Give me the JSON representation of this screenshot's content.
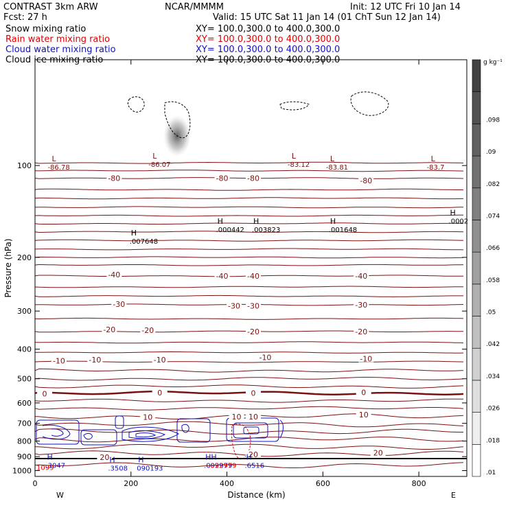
{
  "header": {
    "model": "CONTRAST  3km ARW",
    "center": "NCAR/MMMM",
    "init": "Init: 12 UTC Fri 10 Jan 14",
    "fcst": "Fcst:    27 h",
    "valid": "Valid: 15 UTC Sat 11 Jan 14 (01 ChT Sun 12 Jan 14)"
  },
  "fields": [
    {
      "name": "Snow mixing ratio",
      "xy": "XY= 100.0,300.0 to 400.0,300.0",
      "color": "#000000"
    },
    {
      "name": "Rain water mixing ratio",
      "xy": "XY= 100.0,300.0 to 400.0,300.0",
      "color": "#e00000"
    },
    {
      "name": "Cloud water mixing ratio",
      "xy": "XY= 100.0,300.0 to 400.0,300.0",
      "color": "#1010c0"
    },
    {
      "name": "Cloud ice mixing ratio",
      "xy": "XY= 100.0,300.0 to 400.0,300.0",
      "color": "#000000"
    }
  ],
  "colorbar": {
    "unit": "g kg⁻¹",
    "ticks": [
      ".01",
      ".018",
      ".026",
      ".034",
      ".042",
      ".05",
      ".058",
      ".066",
      ".074",
      ".082",
      ".09",
      ".098"
    ]
  },
  "chart_data": {
    "type": "contour",
    "xlabel": "Distance (km)",
    "ylabel": "Pressure (hPa)",
    "xlim": [
      0,
      900
    ],
    "ylim": [
      1045,
      45
    ],
    "yscale": "log",
    "xticks": [
      0,
      200,
      400,
      600,
      800
    ],
    "yticks": [
      100,
      200,
      300,
      400,
      500,
      600,
      700,
      800,
      900,
      1000
    ],
    "x_end_labels": [
      "W",
      "E"
    ],
    "temperature_contours": [
      {
        "label": "-80",
        "p": 110
      },
      {
        "label": "-40",
        "p": 230
      },
      {
        "label": "-30",
        "p": 286
      },
      {
        "label": "-20",
        "p": 350
      },
      {
        "label": "-10",
        "p": 440
      },
      {
        "label": "0",
        "p": 557,
        "bold": true
      },
      {
        "label": "10",
        "p": 665
      },
      {
        "label": "20",
        "p": 880
      }
    ],
    "contour_labels": [
      {
        "text": "-80",
        "x": 165,
        "p": 110
      },
      {
        "text": "-80",
        "x": 390,
        "p": 110
      },
      {
        "text": "-80",
        "x": 455,
        "p": 110
      },
      {
        "text": "-80",
        "x": 690,
        "p": 112
      },
      {
        "text": "-40",
        "x": 165,
        "p": 228
      },
      {
        "text": "-40",
        "x": 390,
        "p": 230
      },
      {
        "text": "-40",
        "x": 455,
        "p": 230
      },
      {
        "text": "-40",
        "x": 680,
        "p": 230
      },
      {
        "text": "-30",
        "x": 175,
        "p": 285
      },
      {
        "text": "-30",
        "x": 415,
        "p": 288
      },
      {
        "text": "-30",
        "x": 455,
        "p": 288
      },
      {
        "text": "-30",
        "x": 680,
        "p": 286
      },
      {
        "text": "-20",
        "x": 155,
        "p": 345
      },
      {
        "text": "-20",
        "x": 235,
        "p": 347
      },
      {
        "text": "-20",
        "x": 455,
        "p": 350
      },
      {
        "text": "-20",
        "x": 680,
        "p": 350
      },
      {
        "text": "-10",
        "x": 50,
        "p": 437
      },
      {
        "text": "-10",
        "x": 125,
        "p": 433
      },
      {
        "text": "-10",
        "x": 260,
        "p": 433
      },
      {
        "text": "-10",
        "x": 480,
        "p": 425
      },
      {
        "text": "-10",
        "x": 690,
        "p": 430
      },
      {
        "text": "0",
        "x": 20,
        "p": 559
      },
      {
        "text": "0",
        "x": 260,
        "p": 555
      },
      {
        "text": "0",
        "x": 455,
        "p": 557
      },
      {
        "text": "0",
        "x": 685,
        "p": 554
      },
      {
        "text": "10",
        "x": 235,
        "p": 667
      },
      {
        "text": "10",
        "x": 420,
        "p": 665
      },
      {
        "text": "10",
        "x": 455,
        "p": 665
      },
      {
        "text": "10",
        "x": 685,
        "p": 655
      },
      {
        "text": "20",
        "x": 145,
        "p": 905
      },
      {
        "text": "20",
        "x": 455,
        "p": 885
      },
      {
        "text": "20",
        "x": 715,
        "p": 875
      }
    ],
    "extrema": [
      {
        "letter": "L",
        "value": "-86.78",
        "x": 35,
        "p": 100
      },
      {
        "letter": "L",
        "value": "-86.07",
        "x": 245,
        "p": 98
      },
      {
        "letter": "L",
        "value": "-83.12",
        "x": 535,
        "p": 98
      },
      {
        "letter": "L",
        "value": "-83.81",
        "x": 615,
        "p": 100
      },
      {
        "letter": "L",
        "value": "-83.7",
        "x": 825,
        "p": 100
      },
      {
        "letter": "H",
        "value": ".007648",
        "x": 200,
        "p": 175
      },
      {
        "letter": "H",
        "value": ".000442",
        "x": 380,
        "p": 160
      },
      {
        "letter": "H",
        "value": ".003823",
        "x": 455,
        "p": 160
      },
      {
        "letter": "H",
        "value": ".001648",
        "x": 615,
        "p": 160
      },
      {
        "letter": "H",
        "value": ".0002",
        "x": 865,
        "p": 150
      },
      {
        "letter": "H",
        "value": ".3047",
        "x": 25,
        "p": 950
      },
      {
        "letter": "H",
        "value": ".3508",
        "x": 155,
        "p": 970
      },
      {
        "letter": "H",
        "value": "090193",
        "x": 215,
        "p": 970
      },
      {
        "letter": "HH",
        "value": ".092979",
        "x": 355,
        "p": 950
      },
      {
        "letter": "H",
        "value": ".6516",
        "x": 440,
        "p": 950
      }
    ],
    "rain_labels": [
      {
        "text": "1099",
        "x": 0,
        "p": 975
      },
      {
        "text": ".092979",
        "x": 358,
        "p": 960
      }
    ]
  }
}
